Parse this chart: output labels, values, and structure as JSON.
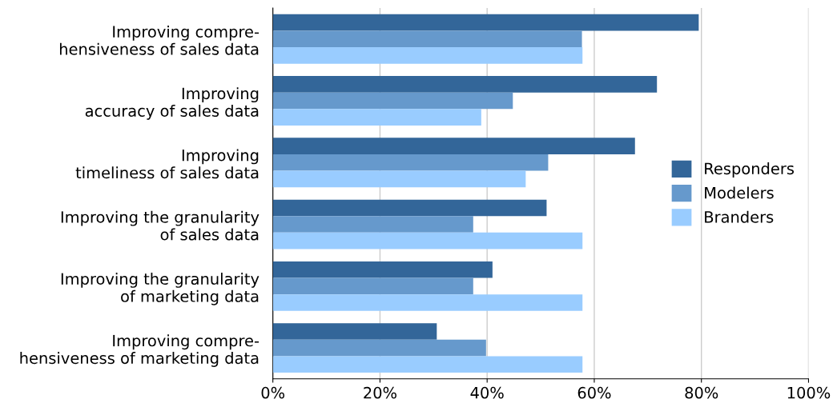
{
  "chart_data": {
    "type": "bar",
    "orientation": "horizontal",
    "categories": [
      "Improving compre-\nhensiveness of sales data",
      "Improving\naccuracy of sales data",
      "Improving\ntimeliness of sales data",
      "Improving the granularity\nof sales data",
      "Improving the granularity\nof marketing data",
      "Improving compre-\nhensiveness of marketing data"
    ],
    "series": [
      {
        "name": "Responders",
        "color": "#336699",
        "values": [
          79.5,
          71.7,
          67.6,
          51.1,
          41.0,
          30.6
        ]
      },
      {
        "name": "Modelers",
        "color": "#6699cc",
        "values": [
          57.7,
          44.8,
          51.4,
          37.4,
          37.4,
          39.8
        ]
      },
      {
        "name": "Branders",
        "color": "#99ccff",
        "values": [
          57.8,
          38.9,
          47.2,
          57.8,
          57.8,
          57.8
        ]
      }
    ],
    "xlim": [
      0,
      100
    ],
    "xticks": [
      {
        "value": 0,
        "label": "0%"
      },
      {
        "value": 20,
        "label": "20%"
      },
      {
        "value": 40,
        "label": "40%"
      },
      {
        "value": 60,
        "label": "60%"
      },
      {
        "value": 80,
        "label": "80%"
      },
      {
        "value": 100,
        "label": "100%"
      }
    ],
    "grid": "x",
    "legend": "right"
  }
}
